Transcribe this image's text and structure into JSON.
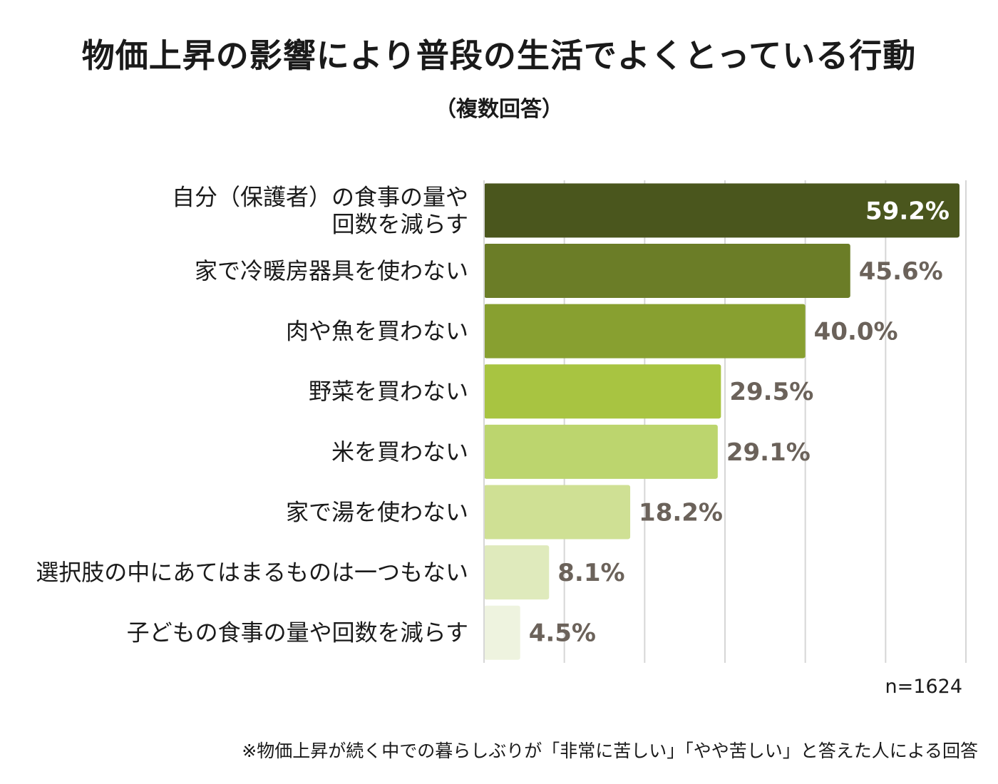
{
  "title": "物価上昇の影響により普段の生活でよくとっている行動",
  "subtitle": "（複数回答）",
  "n_label": "n=1624",
  "footnote": "※物価上昇が続く中での暮らしぶりが「非常に苦しい」「やや苦しい」と答えた人による回答",
  "chart_data": {
    "type": "bar",
    "orientation": "horizontal",
    "xlim": [
      0,
      60
    ],
    "grid": true,
    "categories": [
      [
        "自分（保護者）の食事の量や",
        "回数を減らす"
      ],
      [
        "家で冷暖房器具を使わない"
      ],
      [
        "肉や魚を買わない"
      ],
      [
        "野菜を買わない"
      ],
      [
        "米を買わない"
      ],
      [
        "家で湯を使わない"
      ],
      [
        "選択肢の中にあてはまるものは一つもない"
      ],
      [
        "子どもの食事の量や回数を減らす"
      ]
    ],
    "values": [
      59.2,
      45.6,
      40.0,
      29.5,
      29.1,
      18.2,
      8.1,
      4.5
    ],
    "labels": [
      "59.2%",
      "45.6%",
      "40.0%",
      "29.5%",
      "29.1%",
      "18.2%",
      "8.1%",
      "4.5%"
    ],
    "colors": [
      "#4a561d",
      "#6b7d27",
      "#88a030",
      "#a8c441",
      "#bcd56e",
      "#cfe094",
      "#dfeabc",
      "#eef3df"
    ]
  }
}
